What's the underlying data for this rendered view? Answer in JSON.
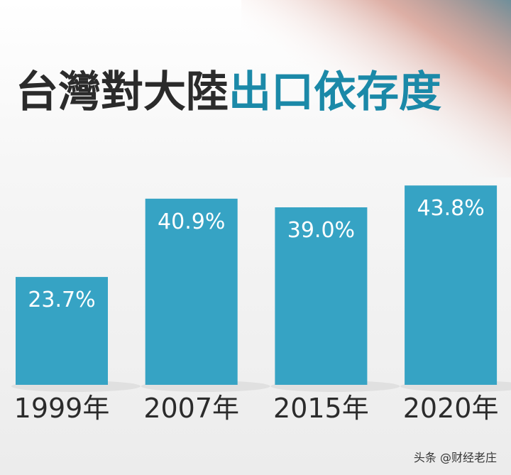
{
  "chart_data": {
    "type": "bar",
    "title": [
      "台灣對大陸",
      "出口依存度"
    ],
    "categories": [
      "1999年",
      "2007年",
      "2015年",
      "2020年"
    ],
    "values": [
      23.7,
      40.9,
      39.0,
      43.8
    ],
    "value_labels": [
      "23.7%",
      "40.9%",
      "39.0%",
      "43.8%"
    ],
    "color": "#36a3c4",
    "watermark": "头条 @财经老庄"
  }
}
